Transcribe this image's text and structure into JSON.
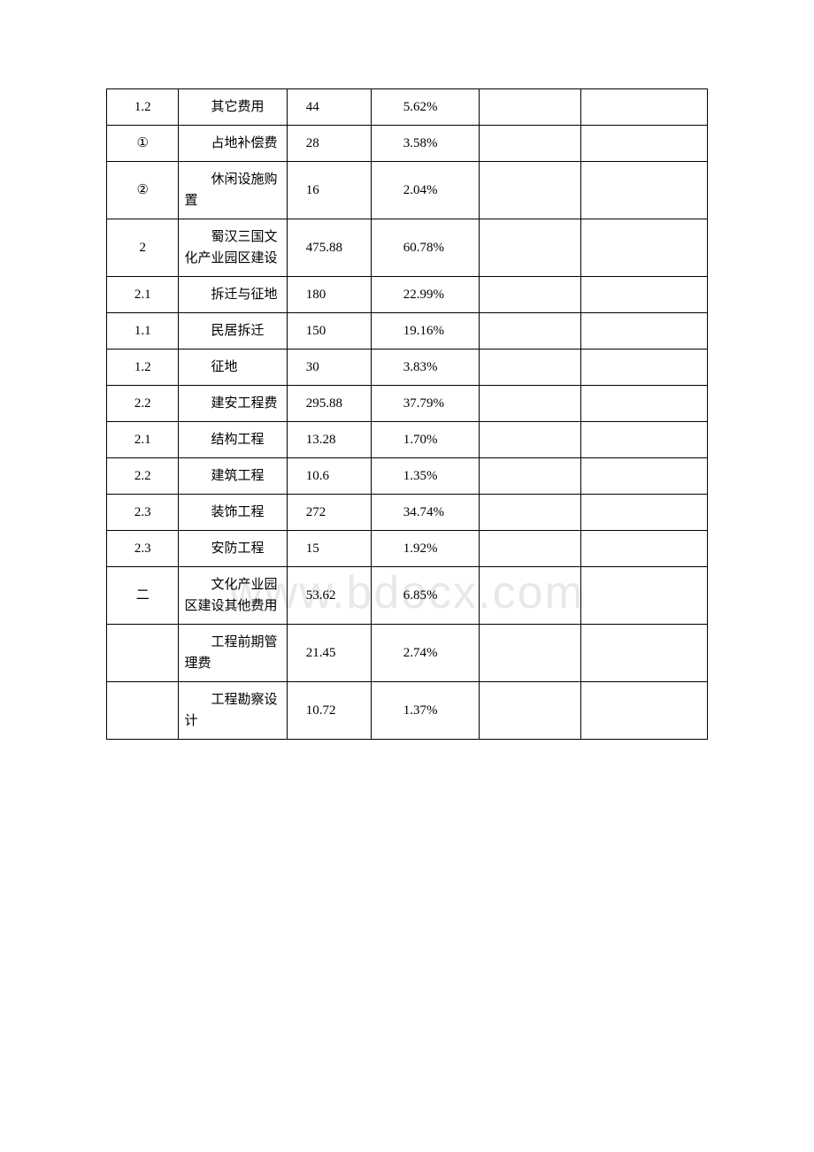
{
  "watermark": "www.bdocx.com",
  "table": {
    "border_color": "#000000",
    "background_color": "#ffffff",
    "text_color": "#000000",
    "font_size": 15,
    "columns": [
      {
        "id": "num",
        "width_pct": 12,
        "align": "center"
      },
      {
        "id": "name",
        "width_pct": 18,
        "align": "left"
      },
      {
        "id": "value",
        "width_pct": 14,
        "align": "left"
      },
      {
        "id": "percent",
        "width_pct": 18,
        "align": "left"
      },
      {
        "id": "empty1",
        "width_pct": 17,
        "align": "left"
      },
      {
        "id": "empty2",
        "width_pct": 21,
        "align": "left"
      }
    ],
    "rows": [
      {
        "num": "1.2",
        "name": "其它费用",
        "value": "44",
        "percent": "5.62%",
        "c5": "",
        "c6": ""
      },
      {
        "num": "①",
        "name": "占地补偿费",
        "value": "28",
        "percent": "3.58%",
        "c5": "",
        "c6": ""
      },
      {
        "num": "②",
        "name": "休闲设施购置",
        "value": "16",
        "percent": "2.04%",
        "c5": "",
        "c6": ""
      },
      {
        "num": "2",
        "name": "蜀汉三国文化产业园区建设",
        "value": "475.88",
        "percent": "60.78%",
        "c5": "",
        "c6": ""
      },
      {
        "num": "2.1",
        "name": "拆迁与征地",
        "value": "180",
        "percent": "22.99%",
        "c5": "",
        "c6": ""
      },
      {
        "num": "1.1",
        "name": "民居拆迁",
        "value": "150",
        "percent": "19.16%",
        "c5": "",
        "c6": ""
      },
      {
        "num": "1.2",
        "name": "征地",
        "value": "30",
        "percent": "3.83%",
        "c5": "",
        "c6": ""
      },
      {
        "num": "2.2",
        "name": "建安工程费",
        "value": "295.88",
        "percent": "37.79%",
        "c5": "",
        "c6": ""
      },
      {
        "num": "2.1",
        "name": "结构工程",
        "value": "13.28",
        "percent": "1.70%",
        "c5": "",
        "c6": ""
      },
      {
        "num": "2.2",
        "name": "建筑工程",
        "value": "10.6",
        "percent": "1.35%",
        "c5": "",
        "c6": ""
      },
      {
        "num": "2.3",
        "name": "装饰工程",
        "value": "272",
        "percent": "34.74%",
        "c5": "",
        "c6": ""
      },
      {
        "num": "2.3",
        "name": "安防工程",
        "value": "15",
        "percent": "1.92%",
        "c5": "",
        "c6": ""
      },
      {
        "num": "二",
        "name": "文化产业园区建设其他费用",
        "value": "53.62",
        "percent": "6.85%",
        "c5": "",
        "c6": ""
      },
      {
        "num": " ",
        "name": "工程前期管理费",
        "value": "21.45",
        "percent": "2.74%",
        "c5": "",
        "c6": ""
      },
      {
        "num": " ",
        "name": "工程勘察设计",
        "value": "10.72",
        "percent": "1.37%",
        "c5": "",
        "c6": ""
      }
    ]
  }
}
